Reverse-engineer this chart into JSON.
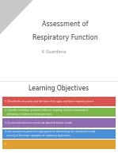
{
  "slide1_bg": "#e8e8e8",
  "slide2_bg": "#ffffff",
  "title_line1": "Assessment of",
  "title_line2": "Respiratory Function",
  "author": "K Suardana",
  "section_title": "Learning Objectives",
  "objectives": [
    "1. Describe the structures and functions of the upper and lower respiratory tracts.",
    "2. Describe ventilation, perfusion, diffusion, shunting, and the relationship of\n   pulmonary circulation to these processes.",
    "3. Discriminate between normal and abnormal breath sounds.",
    "4. Use assessment parameters appropriate for determining the characteristics and\n   severity of the major symptoms of respiratory dysfunction.",
    "5. ..."
  ],
  "obj_colors": [
    "#d9534f",
    "#7ab648",
    "#8e6baf",
    "#4a90d9",
    "#e0a030"
  ],
  "triangle_color": "#c8c8c8",
  "title_color": "#444444",
  "author_color": "#888888",
  "section_title_color": "#333333",
  "fig_bg": "#ffffff",
  "border_color": "#dddddd"
}
